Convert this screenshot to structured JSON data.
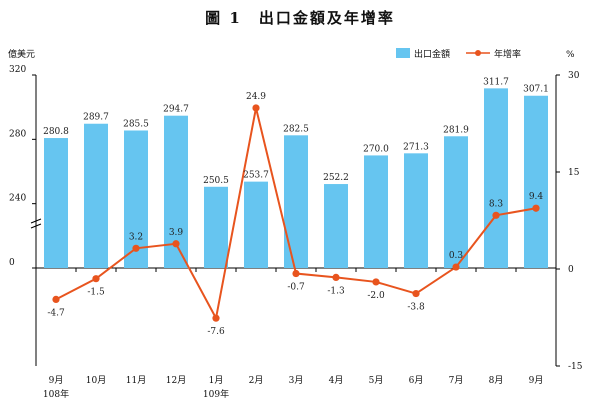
{
  "chart_data": {
    "type": "bar",
    "title": "圖 1　出口金額及年增率",
    "categories": [
      "9月",
      "10月",
      "11月",
      "12月",
      "1月",
      "2月",
      "3月",
      "4月",
      "5月",
      "6月",
      "7月",
      "8月",
      "9月"
    ],
    "year_labels": [
      {
        "index": 0,
        "text": "108年"
      },
      {
        "index": 4,
        "text": "109年"
      }
    ],
    "left_axis": {
      "unit": "億美元",
      "ticks": [
        "320",
        "280",
        "240",
        "0"
      ],
      "broken": true,
      "range": [
        200,
        320
      ]
    },
    "right_axis": {
      "unit": "%",
      "ticks": [
        30,
        15,
        0,
        -15
      ],
      "range": [
        -15,
        30
      ]
    },
    "series": [
      {
        "name": "出口金額",
        "type": "bar",
        "axis": "left",
        "color": "#66c5f0",
        "values": [
          280.8,
          289.7,
          285.5,
          294.7,
          250.5,
          253.7,
          282.5,
          252.2,
          270.0,
          271.3,
          281.9,
          311.7,
          307.1
        ],
        "labels": [
          "280.8",
          "289.7",
          "285.5",
          "294.7",
          "250.5",
          "253.7",
          "282.5",
          "252.2",
          "270.0",
          "271.3",
          "281.9",
          "311.7",
          "307.1"
        ]
      },
      {
        "name": "年增率",
        "type": "line",
        "axis": "right",
        "color": "#e8541e",
        "values": [
          -4.7,
          -1.5,
          3.2,
          3.9,
          -7.6,
          24.9,
          -0.7,
          -1.3,
          -2.0,
          -3.8,
          0.3,
          8.3,
          9.4
        ],
        "labels": [
          "-4.7",
          "-1.5",
          "3.2",
          "3.9",
          "-7.6",
          "24.9",
          "-0.7",
          "-1.3",
          "-2.0",
          "-3.8",
          "0.3",
          "8.3",
          "9.4"
        ]
      }
    ],
    "legend_position": "top-right",
    "grid": false
  }
}
